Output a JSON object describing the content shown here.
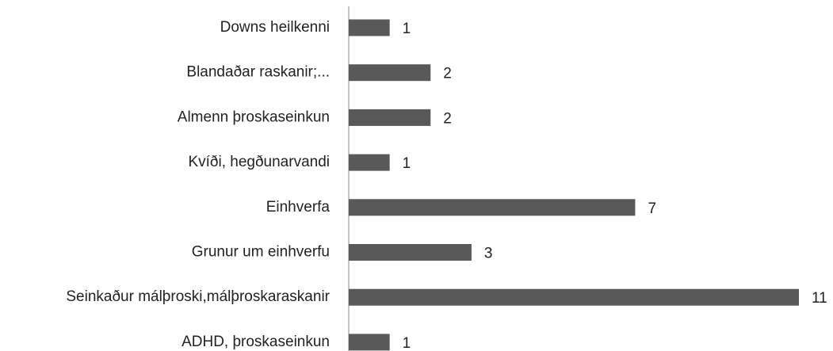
{
  "chart_data": {
    "type": "barh",
    "categories": [
      "Downs heilkenni",
      "Blandaðar raskanir;...",
      "Almenn þroskaseinkun",
      "Kvíði, hegðunarvandi",
      "Einhverfa",
      "Grunur um einhverfu",
      "Seinkaður málþroski,málþroskaraskanir",
      "ADHD, þroskaseinkun"
    ],
    "values": [
      1,
      2,
      2,
      1,
      7,
      3,
      11,
      1
    ],
    "color": "#595959"
  }
}
